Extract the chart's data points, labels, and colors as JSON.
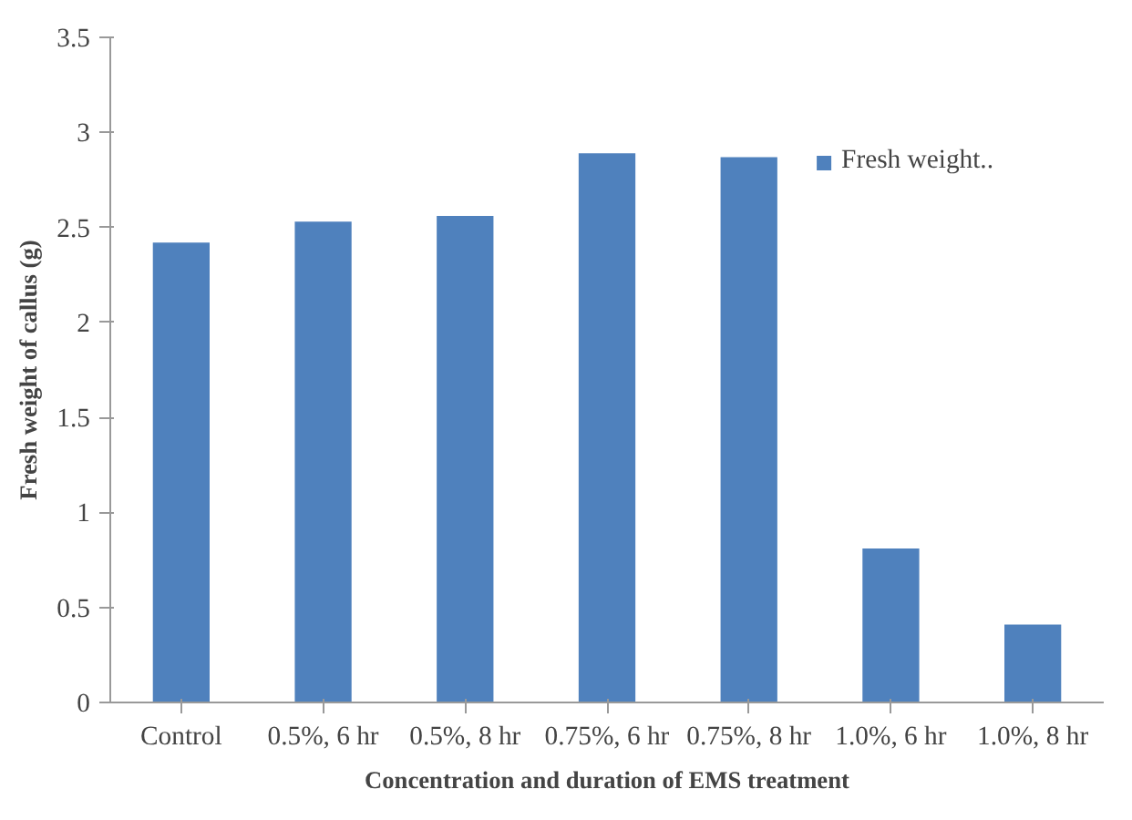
{
  "chart_data": {
    "type": "bar",
    "xlabel": "Concentration and duration of EMS treatment",
    "ylabel": "Fresh weight of callus (g)",
    "categories": [
      "Control",
      "0.5%, 6 hr",
      "0.5%, 8 hr",
      "0.75%, 6 hr",
      "0.75%, 8 hr",
      "1.0%, 6 hr",
      "1.0%, 8 hr"
    ],
    "series": [
      {
        "name": "Fresh weight..",
        "color": "#4f81bd",
        "values": [
          2.42,
          2.53,
          2.56,
          2.89,
          2.87,
          0.81,
          0.41
        ]
      }
    ],
    "ylim": [
      0,
      3.5
    ],
    "yticks": [
      0,
      0.5,
      1,
      1.5,
      2,
      2.5,
      3,
      3.5
    ],
    "legend": "top right"
  }
}
